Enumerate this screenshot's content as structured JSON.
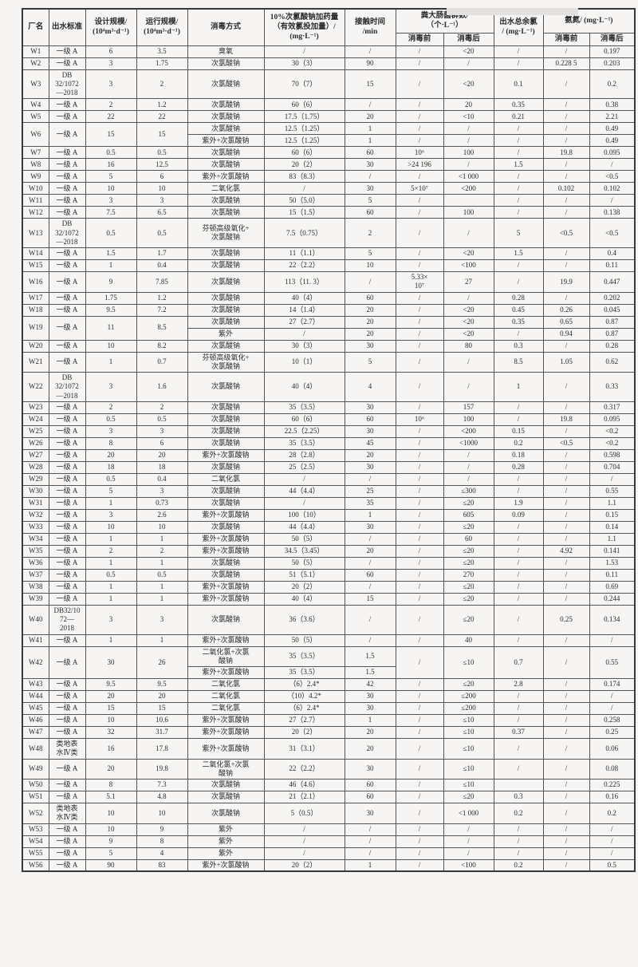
{
  "colors": {
    "page_bg": "#f6f5f3",
    "border": "#555555",
    "text": "#2b2b2b"
  },
  "table": {
    "header": {
      "plant": "厂名",
      "standard": "出水标准",
      "design": "设计规模/\n(10⁴m³·d⁻¹)",
      "run": "运行规模/\n(10⁴m³·d⁻¹)",
      "method": "消毒方式",
      "dose": "10%次氯酸钠加药量\n（有效氯投加量）/\n(mg·L⁻¹)",
      "contact": "接触时间\n/min",
      "fecal": "粪大肠菌群数/\n（个·L⁻¹）",
      "chlorine": "出水总余氯\n/ (mg·L⁻¹)",
      "ammonia": "氨氮/ (mg·L⁻¹)",
      "pre": "消毒前",
      "post": "消毒后"
    },
    "rows": [
      [
        "W1",
        "一级 A",
        "6",
        "3.5",
        "臭氧",
        "/",
        "/",
        "/",
        "<20",
        "/",
        "/",
        "0.197"
      ],
      [
        "W2",
        "一级 A",
        "3",
        "1.75",
        "次氯酸钠",
        "30（3）",
        "90",
        "/",
        "/",
        "/",
        "0.228 5",
        "0.203"
      ],
      [
        "W3",
        "DB\n32/1072\n—2018",
        "3",
        "2",
        "次氯酸钠",
        "70（7）",
        "15",
        "/",
        "<20",
        "0.1",
        "/",
        "0.2"
      ],
      [
        "W4",
        "一级 A",
        "2",
        "1.2",
        "次氯酸钠",
        "60（6）",
        "/",
        "/",
        "20",
        "0.35",
        "/",
        "0.38"
      ],
      [
        "W5",
        "一级 A",
        "22",
        "22",
        "次氯酸钠",
        "17.5（1.75）",
        "20",
        "/",
        "<10",
        "0.21",
        "/",
        "2.21"
      ],
      [
        {
          "t": "W6",
          "rs": 2
        },
        {
          "t": "一级 A",
          "rs": 2
        },
        {
          "t": "15",
          "rs": 2
        },
        {
          "t": "15",
          "rs": 2
        },
        "次氯酸钠",
        "12.5（1.25）",
        "1",
        "/",
        "/",
        "/",
        "/",
        "0.49"
      ],
      [
        "紫外+次氯酸钠",
        "12.5（1.25）",
        "1",
        "/",
        "/",
        "/",
        "/",
        "0.49"
      ],
      [
        "W7",
        "一级 A",
        "0.5",
        "0.5",
        "次氯酸钠",
        "60（6）",
        "60",
        "10⁶",
        "100",
        "/",
        "19.8",
        "0.095"
      ],
      [
        "W8",
        "一级 A",
        "16",
        "12.5",
        "次氯酸钠",
        "20（2）",
        "30",
        ">24 196",
        "/",
        "1.5",
        "/",
        "/"
      ],
      [
        "W9",
        "一级 A",
        "5",
        "6",
        "紫外+次氯酸钠",
        "83（8.3）",
        "/",
        "/",
        "<1 000",
        "/",
        "/",
        "<0.5"
      ],
      [
        "W10",
        "一级 A",
        "10",
        "10",
        "二氧化氯",
        "/",
        "30",
        "5×10⁷",
        "<200",
        "/",
        "0.102",
        "0.102"
      ],
      [
        "W11",
        "一级 A",
        "3",
        "3",
        "次氯酸钠",
        "50（5.0）",
        "5",
        "/",
        "",
        "/",
        "/",
        "/"
      ],
      [
        "W12",
        "一级 A",
        "7.5",
        "6.5",
        "次氯酸钠",
        "15（1.5）",
        "60",
        "/",
        "100",
        "/",
        "/",
        "0.138"
      ],
      [
        "W13",
        "DB\n32/1072\n—2018",
        "0.5",
        "0.5",
        "芬顿高级氧化+\n次氯酸钠",
        "7.5（0.75）",
        "2",
        "/",
        "/",
        "5",
        "<0.5",
        "<0.5"
      ],
      [
        "W14",
        "一级 A",
        "1.5",
        "1.7",
        "次氯酸钠",
        "11（1.1）",
        "5",
        "/",
        "<20",
        "1.5",
        "/",
        "0.4"
      ],
      [
        "W15",
        "一级 A",
        "1",
        "0.4",
        "次氯酸钠",
        "22（2.2）",
        "10",
        "/",
        "<100",
        "/",
        "/",
        "0.11"
      ],
      [
        "W16",
        "一级 A",
        "9",
        "7.85",
        "次氯酸钠",
        "113（11. 3）",
        "/",
        "5.33×\n10⁷",
        "27",
        "/",
        "19.9",
        "0.447"
      ],
      [
        "W17",
        "一级 A",
        "1.75",
        "1.2",
        "次氯酸钠",
        "40（4）",
        "60",
        "/",
        "/",
        "0.28",
        "/",
        "0.202"
      ],
      [
        "W18",
        "一级 A",
        "9.5",
        "7.2",
        "次氯酸钠",
        "14（1.4）",
        "20",
        "/",
        "<20",
        "0.45",
        "0.26",
        "0.045"
      ],
      [
        {
          "t": "W19",
          "rs": 2
        },
        {
          "t": "一级 A",
          "rs": 2
        },
        {
          "t": "11",
          "rs": 2
        },
        {
          "t": "8.5",
          "rs": 2
        },
        "次氯酸钠",
        "27（2.7）",
        "20",
        "/",
        "<20",
        "0.35",
        "0.65",
        "0.87"
      ],
      [
        "紫外",
        "/",
        "20",
        "/",
        "<20",
        "/",
        "0.94",
        "0.87"
      ],
      [
        "W20",
        "一级 A",
        "10",
        "8.2",
        "次氯酸钠",
        "30（3）",
        "30",
        "/",
        "80",
        "0.3",
        "/",
        "0.28"
      ],
      [
        "W21",
        "一级 A",
        "1",
        "0.7",
        "芬顿高级氧化+\n次氯酸钠",
        "10（1）",
        "5",
        "/",
        "/",
        "8.5",
        "1.05",
        "0.62"
      ],
      [
        "W22",
        "DB\n32/1072\n—2018",
        "3",
        "1.6",
        "次氯酸钠",
        "40（4）",
        "4",
        "/",
        "/",
        "1",
        "/",
        "0.33"
      ],
      [
        "W23",
        "一级 A",
        "2",
        "2",
        "次氯酸钠",
        "35（3.5）",
        "30",
        "/",
        "157",
        "/",
        "/",
        "0.317"
      ],
      [
        "W24",
        "一级 A",
        "0.5",
        "0.5",
        "次氯酸钠",
        "60（6）",
        "60",
        "10⁶",
        "100",
        "/",
        "19.8",
        "0.095"
      ],
      [
        "W25",
        "一级 A",
        "3",
        "3",
        "次氯酸钠",
        "22.5（2.25）",
        "30",
        "/",
        "<200",
        "0.15",
        "/",
        "<0.2"
      ],
      [
        "W26",
        "一级 A",
        "8",
        "6",
        "次氯酸钠",
        "35（3.5）",
        "45",
        "/",
        "<1000",
        "0.2",
        "<0.5",
        "<0.2"
      ],
      [
        "W27",
        "一级 A",
        "20",
        "20",
        "紫外+次氯酸钠",
        "28（2.8）",
        "20",
        "/",
        "/",
        "0.18",
        "/",
        "0.598"
      ],
      [
        "W28",
        "一级 A",
        "18",
        "18",
        "次氯酸钠",
        "25（2.5）",
        "30",
        "/",
        "/",
        "0.28",
        "/",
        "0.704"
      ],
      [
        "W29",
        "一级 A",
        "0.5",
        "0.4",
        "二氧化氯",
        "/",
        "/",
        "/",
        "/",
        "/",
        "/",
        "/"
      ],
      [
        "W30",
        "一级 A",
        "5",
        "3",
        "次氯酸钠",
        "44（4.4）",
        "25",
        "/",
        "≤300",
        "/",
        "/",
        "0.55"
      ],
      [
        "W31",
        "一级 A",
        "1",
        "0.73",
        "次氯酸钠",
        "/",
        "35",
        "/",
        "≤20",
        "1.9",
        "/",
        "1.1"
      ],
      [
        "W32",
        "一级 A",
        "3",
        "2.6",
        "紫外+次氯酸钠",
        "100（10）",
        "1",
        "/",
        "605",
        "0.09",
        "/",
        "0.15"
      ],
      [
        "W33",
        "一级 A",
        "10",
        "10",
        "次氯酸钠",
        "44（4.4）",
        "30",
        "/",
        "≤20",
        "/",
        "/",
        "0.14"
      ],
      [
        "W34",
        "一级 A",
        "1",
        "1",
        "紫外+次氯酸钠",
        "50（5）",
        "/",
        "/",
        "60",
        "/",
        "/",
        "1.1"
      ],
      [
        "W35",
        "一级 A",
        "2",
        "2",
        "紫外+次氯酸钠",
        "34.5（3.45）",
        "20",
        "/",
        "≤20",
        "/",
        "4.92",
        "0.141"
      ],
      [
        "W36",
        "一级 A",
        "1",
        "1",
        "次氯酸钠",
        "50（5）",
        "/",
        "/",
        "≤20",
        "/",
        "/",
        "1.53"
      ],
      [
        "W37",
        "一级 A",
        "0.5",
        "0.5",
        "次氯酸钠",
        "51（5.1）",
        "60",
        "/",
        "270",
        "/",
        "/",
        "0.11"
      ],
      [
        "W38",
        "一级 A",
        "1",
        "1",
        "紫外+次氯酸钠",
        "20（2）",
        "/",
        "/",
        "≤20",
        "/",
        "/",
        "0.69"
      ],
      [
        "W39",
        "一级 A",
        "1",
        "1",
        "紫外+次氯酸钠",
        "40（4）",
        "15",
        "/",
        "≤20",
        "/",
        "/",
        "0.244"
      ],
      [
        "W40",
        "DB32/10\n72—\n2018",
        "3",
        "3",
        "次氯酸钠",
        "36（3.6）",
        "/",
        "/",
        "≤20",
        "/",
        "0.25",
        "0.134"
      ],
      [
        "W41",
        "一级 A",
        "1",
        "1",
        "紫外+次氯酸钠",
        "50（5）",
        "/",
        "/",
        "40",
        "/",
        "/",
        "/"
      ],
      [
        {
          "t": "W42",
          "rs": 2
        },
        {
          "t": "一级 A",
          "rs": 2
        },
        {
          "t": "30",
          "rs": 2
        },
        {
          "t": "26",
          "rs": 2
        },
        "二氧化氯+次氯\n酸钠",
        "35（3.5）",
        "1.5",
        {
          "t": "/",
          "rs": 2
        },
        {
          "t": "≤10",
          "rs": 2
        },
        {
          "t": "0.7",
          "rs": 2
        },
        {
          "t": "/",
          "rs": 2
        },
        {
          "t": "0.55",
          "rs": 2
        }
      ],
      [
        "紫外+次氯酸钠",
        "35（3.5）",
        "1.5"
      ],
      [
        "W43",
        "一级 A",
        "9.5",
        "9.5",
        "二氧化氯",
        "（6）2.4*",
        "42",
        "/",
        "≤20",
        "2.8",
        "/",
        "0.174"
      ],
      [
        "W44",
        "一级 A",
        "20",
        "20",
        "二氧化氯",
        "（10）4.2*",
        "30",
        "/",
        "≤200",
        "/",
        "/",
        "/"
      ],
      [
        "W45",
        "一级 A",
        "15",
        "15",
        "二氧化氯",
        "（6）2.4*",
        "30",
        "/",
        "≤200",
        "/",
        "/",
        "/"
      ],
      [
        "W46",
        "一级 A",
        "10",
        "10.6",
        "紫外+次氯酸钠",
        "27（2.7）",
        "1",
        "/",
        "≤10",
        "/",
        "/",
        "0.258"
      ],
      [
        "W47",
        "一级 A",
        "32",
        "31.7",
        "紫外+次氯酸钠",
        "20（2）",
        "20",
        "/",
        "≤10",
        "0.37",
        "/",
        "0.25"
      ],
      [
        "W48",
        "类地表\n水Ⅳ类",
        "16",
        "17.8",
        "紫外+次氯酸钠",
        "31（3.1）",
        "20",
        "/",
        "≤10",
        "/",
        "/",
        "0.06"
      ],
      [
        "W49",
        "一级 A",
        "20",
        "19.8",
        "二氧化氯+次氯\n酸钠",
        "22（2.2）",
        "30",
        "/",
        "≤10",
        "/",
        "/",
        "0.08"
      ],
      [
        "W50",
        "一级 A",
        "8",
        "7.3",
        "次氯酸钠",
        "46（4.6）",
        "60",
        "/",
        "≤10",
        "",
        "/",
        "0.225"
      ],
      [
        "W51",
        "一级 A",
        "5.1",
        "4.8",
        "次氯酸钠",
        "21（2.1）",
        "60",
        "/",
        "≤20",
        "0.3",
        "/",
        "0.16"
      ],
      [
        "W52",
        "类地表\n水Ⅳ类",
        "10",
        "10",
        "次氯酸钠",
        "5（0.5）",
        "30",
        "/",
        "<1 000",
        "0.2",
        "/",
        "0.2"
      ],
      [
        "W53",
        "一级 A",
        "10",
        "9",
        "紫外",
        "/",
        "/",
        "/",
        "/",
        "/",
        "/",
        "/"
      ],
      [
        "W54",
        "一级 A",
        "9",
        "8",
        "紫外",
        "/",
        "/",
        "/",
        "/",
        "/",
        "/",
        "/"
      ],
      [
        "W55",
        "一级 A",
        "5",
        "4",
        "紫外",
        "/",
        "/",
        "/",
        "/",
        "/",
        "/",
        "/"
      ],
      [
        "W56",
        "一级 A",
        "90",
        "83",
        "紫外+次氯酸钠",
        "20（2）",
        "1",
        "/",
        "<100",
        "0.2",
        "/",
        "0.5"
      ]
    ]
  }
}
